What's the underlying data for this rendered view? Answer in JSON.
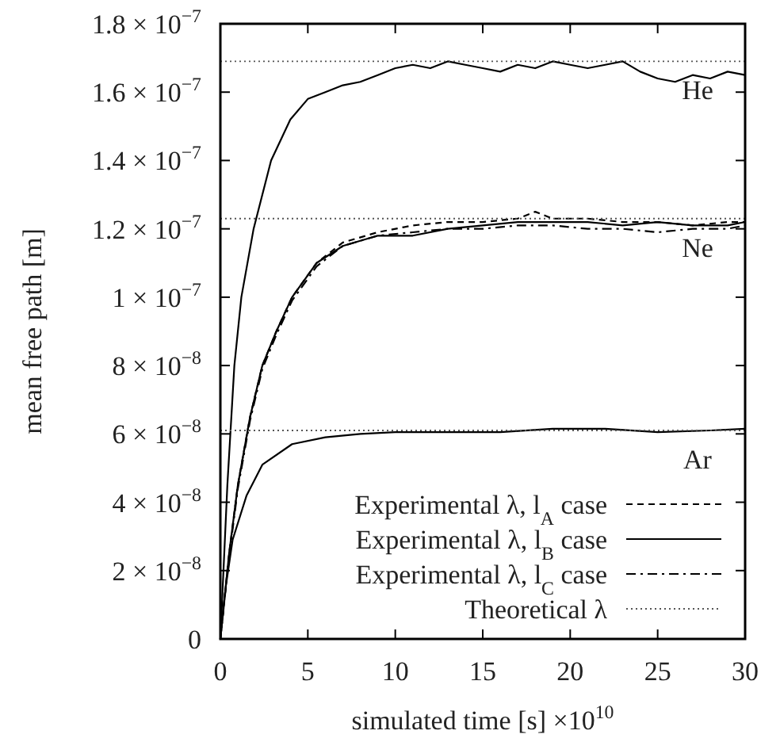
{
  "chart_data": {
    "type": "line",
    "xlabel": "simulated time [s] ×10$^{10}$",
    "ylabel": "mean free path [m]",
    "xlim": [
      0,
      30
    ],
    "xticks": [
      0,
      5,
      10,
      15,
      20,
      25,
      30
    ],
    "ylim": [
      0,
      1.8e-07
    ],
    "yticks": [
      {
        "value": 0,
        "label": "0"
      },
      {
        "value": 2e-08,
        "label": "2 × 10$^{−8}$"
      },
      {
        "value": 4e-08,
        "label": "4 × 10$^{−8}$"
      },
      {
        "value": 6e-08,
        "label": "6 × 10$^{−8}$"
      },
      {
        "value": 8e-08,
        "label": "8 × 10$^{−8}$"
      },
      {
        "value": 1e-07,
        "label": "1 × 10$^{−7}$"
      },
      {
        "value": 1.2e-07,
        "label": "1.2 × 10$^{−7}$"
      },
      {
        "value": 1.4e-07,
        "label": "1.4 × 10$^{−7}$"
      },
      {
        "value": 1.6e-07,
        "label": "1.6 × 10$^{−7}$"
      },
      {
        "value": 1.8e-07,
        "label": "1.8 × 10$^{−7}$"
      }
    ],
    "grid": false,
    "legend": "bottom right",
    "series": [
      {
        "name": "Experimental λ, l$_{A}$ case",
        "color": "#000000",
        "line_style": "dashed",
        "x": [
          0,
          0.5,
          1,
          1.7,
          2.4,
          3.2,
          4.1,
          5.5,
          7,
          9,
          11,
          13,
          15,
          17,
          18,
          19,
          21,
          23,
          25,
          27,
          29,
          30
        ],
        "values": [
          0,
          2.5e-08,
          4.5e-08,
          6.5e-08,
          8e-08,
          9e-08,
          1e-07,
          1.1e-07,
          1.16e-07,
          1.19e-07,
          1.21e-07,
          1.22e-07,
          1.22e-07,
          1.23e-07,
          1.25e-07,
          1.23e-07,
          1.23e-07,
          1.22e-07,
          1.22e-07,
          1.21e-07,
          1.22e-07,
          1.22e-07
        ]
      },
      {
        "name": "Experimental λ, l$_{B}$ case",
        "color": "#000000",
        "line_style": "solid",
        "x": [
          0,
          0.4,
          0.8,
          1.2,
          1.9,
          2.9,
          4,
          5,
          6,
          7,
          8,
          9,
          10,
          11,
          12,
          13,
          14,
          15,
          16,
          17,
          18,
          19,
          20,
          21,
          22,
          23,
          24,
          25,
          26,
          27,
          28,
          29,
          30
        ],
        "values": [
          0,
          4.5e-08,
          8e-08,
          1e-07,
          1.2e-07,
          1.4e-07,
          1.52e-07,
          1.58e-07,
          1.6e-07,
          1.62e-07,
          1.63e-07,
          1.65e-07,
          1.67e-07,
          1.68e-07,
          1.67e-07,
          1.69e-07,
          1.68e-07,
          1.67e-07,
          1.66e-07,
          1.68e-07,
          1.67e-07,
          1.69e-07,
          1.68e-07,
          1.67e-07,
          1.68e-07,
          1.69e-07,
          1.66e-07,
          1.64e-07,
          1.63e-07,
          1.65e-07,
          1.64e-07,
          1.66e-07,
          1.65e-07
        ]
      },
      {
        "name": "Experimental λ, l$_{C}$ case",
        "color": "#000000",
        "line_style": "dashdot",
        "x": [
          0,
          0.5,
          1,
          1.7,
          2.4,
          3.2,
          4.1,
          5.5,
          7,
          9,
          11,
          13,
          15,
          17,
          19,
          21,
          23,
          25,
          27,
          29,
          30
        ],
        "values": [
          0,
          2.4e-08,
          4.4e-08,
          6.4e-08,
          7.9e-08,
          8.9e-08,
          9.9e-08,
          1.09e-07,
          1.15e-07,
          1.18e-07,
          1.19e-07,
          1.2e-07,
          1.2e-07,
          1.21e-07,
          1.21e-07,
          1.2e-07,
          1.2e-07,
          1.19e-07,
          1.2e-07,
          1.2e-07,
          1.21e-07
        ]
      },
      {
        "color": "#000000",
        "line_style": "solid",
        "x": [
          0,
          0.5,
          1,
          1.7,
          2.4,
          3.2,
          4.1,
          5.5,
          7,
          9,
          11,
          13,
          15,
          17,
          19,
          21,
          23,
          25,
          27,
          29,
          30
        ],
        "values": [
          0,
          2.5e-08,
          4.5e-08,
          6.5e-08,
          8e-08,
          9e-08,
          1e-07,
          1.1e-07,
          1.15e-07,
          1.18e-07,
          1.18e-07,
          1.2e-07,
          1.21e-07,
          1.22e-07,
          1.22e-07,
          1.22e-07,
          1.21e-07,
          1.22e-07,
          1.21e-07,
          1.21e-07,
          1.22e-07
        ]
      },
      {
        "color": "#000000",
        "line_style": "solid",
        "x": [
          0,
          0.3,
          0.7,
          1.5,
          2.4,
          4.1,
          6,
          8,
          10,
          13,
          16,
          19,
          22,
          25,
          28,
          30
        ],
        "values": [
          0,
          1.5e-08,
          2.9e-08,
          4.2e-08,
          5.1e-08,
          5.7e-08,
          5.9e-08,
          6e-08,
          6.05e-08,
          6.05e-08,
          6.05e-08,
          6.15e-08,
          6.15e-08,
          6.05e-08,
          6.1e-08,
          6.15e-08
        ]
      },
      {
        "name": "Theoretical λ",
        "color": "#555555",
        "line_style": "dotted",
        "x": [
          0,
          30
        ],
        "values": [
          1.69e-07,
          1.69e-07
        ]
      },
      {
        "color": "#555555",
        "line_style": "dotted",
        "x": [
          0,
          30
        ],
        "values": [
          1.23e-07,
          1.23e-07
        ]
      },
      {
        "color": "#555555",
        "line_style": "dotted",
        "x": [
          0,
          30
        ],
        "values": [
          6.1e-08,
          6.1e-08
        ]
      }
    ],
    "annotations": [
      "He",
      "Ne",
      "Ar"
    ]
  }
}
